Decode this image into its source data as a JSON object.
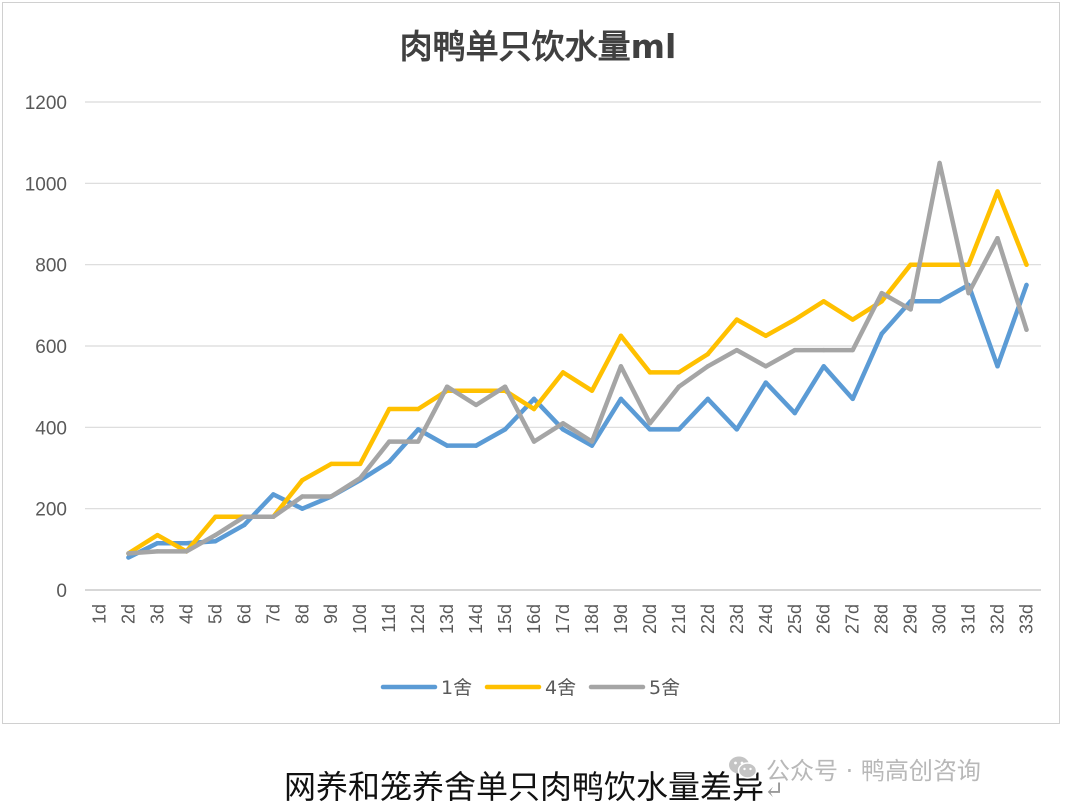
{
  "chart_data": {
    "type": "line",
    "title": "肉鸭单只饮水量ml",
    "xlabel": "",
    "ylabel": "",
    "ylim": [
      0,
      1200
    ],
    "y_ticks": [
      0,
      200,
      400,
      600,
      800,
      1000,
      1200
    ],
    "grid": "horizontal",
    "legend_position": "bottom",
    "categories": [
      "1d",
      "2d",
      "3d",
      "4d",
      "5d",
      "6d",
      "7d",
      "8d",
      "9d",
      "10d",
      "11d",
      "12d",
      "13d",
      "14d",
      "15d",
      "16d",
      "17d",
      "18d",
      "19d",
      "20d",
      "21d",
      "22d",
      "23d",
      "24d",
      "25d",
      "26d",
      "27d",
      "28d",
      "29d",
      "30d",
      "31d",
      "32d",
      "33d"
    ],
    "series": [
      {
        "name": "1舍",
        "color": "#5b9bd5",
        "values": [
          null,
          80,
          115,
          115,
          120,
          160,
          235,
          200,
          230,
          270,
          315,
          395,
          355,
          355,
          395,
          470,
          395,
          355,
          470,
          395,
          395,
          470,
          395,
          510,
          435,
          550,
          470,
          630,
          710,
          710,
          750,
          550,
          750
        ]
      },
      {
        "name": "4舍",
        "color": "#ffc000",
        "values": [
          null,
          90,
          135,
          95,
          180,
          180,
          180,
          270,
          310,
          310,
          445,
          445,
          490,
          490,
          490,
          445,
          535,
          490,
          625,
          535,
          535,
          580,
          665,
          625,
          665,
          710,
          665,
          710,
          800,
          800,
          800,
          980,
          800
        ]
      },
      {
        "name": "5舍",
        "color": "#a5a5a5",
        "values": [
          null,
          90,
          95,
          95,
          135,
          180,
          180,
          230,
          230,
          275,
          365,
          365,
          500,
          455,
          500,
          365,
          410,
          365,
          550,
          410,
          500,
          550,
          590,
          550,
          590,
          590,
          590,
          730,
          690,
          1050,
          730,
          865,
          640
        ]
      }
    ]
  },
  "caption": "网养和笼养舍单只肉鸭饮水量差异",
  "caption_return_mark": "↵",
  "watermark": {
    "icon": "wechat-icon",
    "text": "公众号 · 鸭高创咨询"
  }
}
